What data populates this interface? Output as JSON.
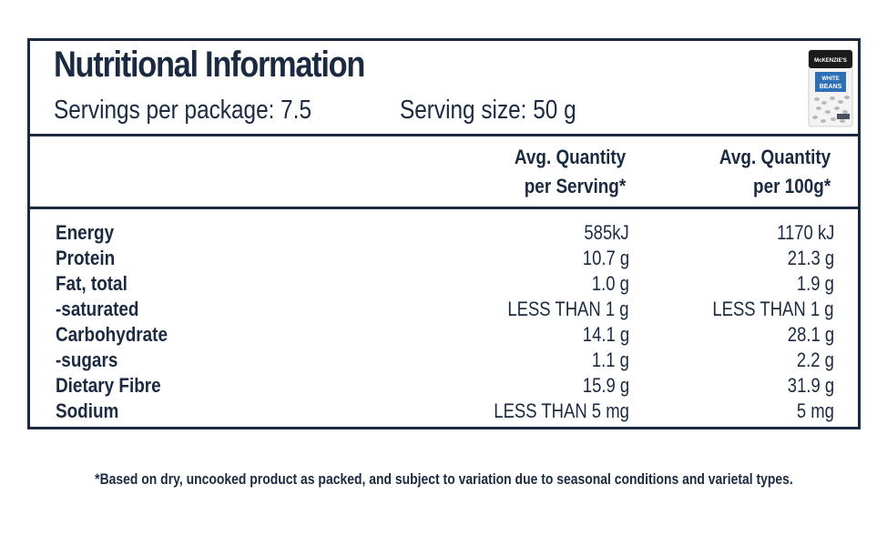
{
  "panel": {
    "title": "Nutritional Information",
    "servings_per_package": "Servings per package: 7.5",
    "serving_size": "Serving size: 50 g",
    "product_image": {
      "brand_text": "McKENZIE'S",
      "product_text_1": "WHITE",
      "product_text_2": "BEANS",
      "colors": {
        "top": "#1b1b1b",
        "body": "#f3f3f3",
        "label": "#2f6fb5"
      }
    }
  },
  "columns": {
    "per_serving_line1": "Avg. Quantity",
    "per_serving_line2": "per Serving*",
    "per_100g_line1": "Avg. Quantity",
    "per_100g_line2": "per 100g*"
  },
  "rows": [
    {
      "name": "Energy",
      "per_serving": "585kJ",
      "per_100g": "1170 kJ"
    },
    {
      "name": "Protein",
      "per_serving": "10.7 g",
      "per_100g": "21.3 g"
    },
    {
      "name": "Fat, total",
      "per_serving": "1.0 g",
      "per_100g": "1.9 g"
    },
    {
      "name": "-saturated",
      "per_serving": "LESS THAN 1 g",
      "per_100g": "LESS THAN 1 g"
    },
    {
      "name": "Carbohydrate",
      "per_serving": "14.1 g",
      "per_100g": "28.1 g"
    },
    {
      "name": "-sugars",
      "per_serving": "1.1 g",
      "per_100g": "2.2 g"
    },
    {
      "name": "Dietary Fibre",
      "per_serving": "15.9 g",
      "per_100g": "31.9 g"
    },
    {
      "name": "Sodium",
      "per_serving": "LESS THAN 5 mg",
      "per_100g": "5 mg"
    }
  ],
  "footnote": "*Based on dry, uncooked product as packed, and subject to variation due to seasonal conditions and varietal types.",
  "colors": {
    "ink": "#1b2a41",
    "background": "#ffffff"
  }
}
